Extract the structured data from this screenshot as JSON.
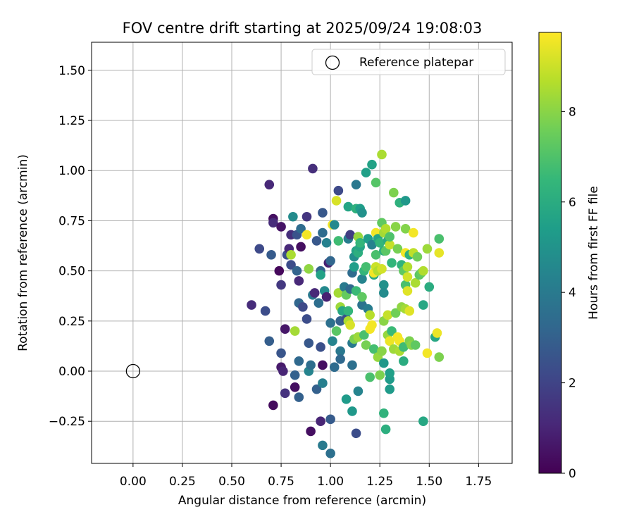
{
  "chart_data": {
    "type": "scatter",
    "title": "FOV centre drift starting at 2025/09/24 19:08:03",
    "xlabel": "Angular distance from reference (arcmin)",
    "ylabel": "Rotation from reference (arcmin)",
    "xlim": [
      -0.21,
      1.92
    ],
    "ylim": [
      -0.46,
      1.64
    ],
    "xticks": [
      "0.00",
      "0.25",
      "0.50",
      "0.75",
      "1.00",
      "1.25",
      "1.50",
      "1.75"
    ],
    "yticks": [
      "−0.25",
      "0.00",
      "0.25",
      "0.50",
      "0.75",
      "1.00",
      "1.25",
      "1.50"
    ],
    "xtick_values": [
      0,
      0.25,
      0.5,
      0.75,
      1.0,
      1.25,
      1.5,
      1.75
    ],
    "ytick_values": [
      -0.25,
      0,
      0.25,
      0.5,
      0.75,
      1.0,
      1.25,
      1.5
    ],
    "grid": true,
    "legend": {
      "position": "top-right",
      "label": "Reference platepar"
    },
    "reference_point": {
      "x": 0.0,
      "y": 0.0
    },
    "colorbar": {
      "label": "Hours from first FF file",
      "range": [
        0,
        9.75
      ],
      "ticks": [
        "0",
        "2",
        "4",
        "6",
        "8"
      ],
      "tick_values": [
        0,
        2,
        4,
        6,
        8
      ],
      "colormap": "viridis"
    },
    "points": [
      {
        "x": 0.6,
        "y": 0.33,
        "h": 1.2
      },
      {
        "x": 0.64,
        "y": 0.61,
        "h": 2.2
      },
      {
        "x": 0.67,
        "y": 0.3,
        "h": 2.3
      },
      {
        "x": 0.69,
        "y": 0.93,
        "h": 1.1
      },
      {
        "x": 0.69,
        "y": 0.15,
        "h": 2.9
      },
      {
        "x": 0.7,
        "y": 0.58,
        "h": 2.8
      },
      {
        "x": 0.71,
        "y": 0.76,
        "h": 0.4
      },
      {
        "x": 0.71,
        "y": 0.74,
        "h": 1.2
      },
      {
        "x": 0.71,
        "y": -0.17,
        "h": 0.3
      },
      {
        "x": 0.74,
        "y": 0.5,
        "h": 0.2
      },
      {
        "x": 0.75,
        "y": 0.72,
        "h": 0.5
      },
      {
        "x": 0.75,
        "y": 0.43,
        "h": 1.6
      },
      {
        "x": 0.75,
        "y": 0.09,
        "h": 2.6
      },
      {
        "x": 0.75,
        "y": 0.02,
        "h": 0.7
      },
      {
        "x": 0.76,
        "y": 0.0,
        "h": 1.0
      },
      {
        "x": 0.77,
        "y": 0.21,
        "h": 0.6
      },
      {
        "x": 0.77,
        "y": -0.11,
        "h": 1.4
      },
      {
        "x": 0.78,
        "y": 0.58,
        "h": 2.4
      },
      {
        "x": 0.79,
        "y": 0.61,
        "h": 1.1
      },
      {
        "x": 0.8,
        "y": 0.68,
        "h": 1.3
      },
      {
        "x": 0.8,
        "y": 0.58,
        "h": 8.5
      },
      {
        "x": 0.8,
        "y": 0.53,
        "h": 2.3
      },
      {
        "x": 0.81,
        "y": 0.77,
        "h": 4.7
      },
      {
        "x": 0.82,
        "y": 0.2,
        "h": 8.4
      },
      {
        "x": 0.82,
        "y": -0.08,
        "h": 0.4
      },
      {
        "x": 0.82,
        "y": -0.02,
        "h": 3.0
      },
      {
        "x": 0.83,
        "y": 0.68,
        "h": 2.5
      },
      {
        "x": 0.83,
        "y": 0.5,
        "h": 3.1
      },
      {
        "x": 0.84,
        "y": 0.34,
        "h": 3.2
      },
      {
        "x": 0.84,
        "y": 0.45,
        "h": 1.1
      },
      {
        "x": 0.84,
        "y": 0.05,
        "h": 3.3
      },
      {
        "x": 0.84,
        "y": -0.13,
        "h": 3.0
      },
      {
        "x": 0.85,
        "y": 0.71,
        "h": 3.4
      },
      {
        "x": 0.85,
        "y": 0.62,
        "h": 0.4
      },
      {
        "x": 0.86,
        "y": 0.32,
        "h": 2.2
      },
      {
        "x": 0.88,
        "y": 0.77,
        "h": 1.5
      },
      {
        "x": 0.88,
        "y": 0.68,
        "h": 9.6
      },
      {
        "x": 0.88,
        "y": 0.26,
        "h": 2.3
      },
      {
        "x": 0.89,
        "y": 0.14,
        "h": 2.7
      },
      {
        "x": 0.89,
        "y": 0.0,
        "h": 4.4
      },
      {
        "x": 0.89,
        "y": 0.51,
        "h": 8.1
      },
      {
        "x": 0.9,
        "y": -0.3,
        "h": 0.4
      },
      {
        "x": 0.9,
        "y": 0.03,
        "h": 3.5
      },
      {
        "x": 0.91,
        "y": 1.01,
        "h": 1.3
      },
      {
        "x": 0.91,
        "y": 0.38,
        "h": 3.9
      },
      {
        "x": 0.92,
        "y": 0.39,
        "h": 1.1
      },
      {
        "x": 0.93,
        "y": -0.09,
        "h": 3.0
      },
      {
        "x": 0.93,
        "y": 0.65,
        "h": 2.7
      },
      {
        "x": 0.94,
        "y": 0.34,
        "h": 3.5
      },
      {
        "x": 0.95,
        "y": 0.5,
        "h": 3.1
      },
      {
        "x": 0.95,
        "y": 0.12,
        "h": 2.4
      },
      {
        "x": 0.95,
        "y": 0.48,
        "h": 5.6
      },
      {
        "x": 0.95,
        "y": -0.25,
        "h": 1.0
      },
      {
        "x": 0.96,
        "y": 0.79,
        "h": 2.7
      },
      {
        "x": 0.96,
        "y": 0.69,
        "h": 3.4
      },
      {
        "x": 0.96,
        "y": 0.03,
        "h": 0.4
      },
      {
        "x": 0.96,
        "y": -0.06,
        "h": 4.2
      },
      {
        "x": 0.96,
        "y": -0.37,
        "h": 4.0
      },
      {
        "x": 0.97,
        "y": 0.4,
        "h": 4.6
      },
      {
        "x": 0.98,
        "y": 0.37,
        "h": 0.9
      },
      {
        "x": 0.98,
        "y": 0.64,
        "h": 4.3
      },
      {
        "x": 0.99,
        "y": 0.54,
        "h": 0.9
      },
      {
        "x": 1.0,
        "y": 0.24,
        "h": 3.6
      },
      {
        "x": 1.0,
        "y": 0.55,
        "h": 3.2
      },
      {
        "x": 1.0,
        "y": -0.24,
        "h": 2.8
      },
      {
        "x": 1.0,
        "y": -0.41,
        "h": 3.6
      },
      {
        "x": 1.01,
        "y": 0.73,
        "h": 9.6
      },
      {
        "x": 1.01,
        "y": 0.15,
        "h": 4.4
      },
      {
        "x": 1.02,
        "y": 0.02,
        "h": 3.4
      },
      {
        "x": 1.02,
        "y": 0.73,
        "h": 4.6
      },
      {
        "x": 1.03,
        "y": 0.2,
        "h": 7.2
      },
      {
        "x": 1.03,
        "y": 0.85,
        "h": 9.2
      },
      {
        "x": 1.04,
        "y": 0.9,
        "h": 2.2
      },
      {
        "x": 1.04,
        "y": 0.39,
        "h": 8.4
      },
      {
        "x": 1.04,
        "y": 0.65,
        "h": 6.7
      },
      {
        "x": 1.05,
        "y": 0.32,
        "h": 8.3
      },
      {
        "x": 1.05,
        "y": 0.25,
        "h": 3.0
      },
      {
        "x": 1.05,
        "y": 0.1,
        "h": 3.9
      },
      {
        "x": 1.05,
        "y": 0.06,
        "h": 3.3
      },
      {
        "x": 1.06,
        "y": 0.3,
        "h": 5.8
      },
      {
        "x": 1.07,
        "y": 0.42,
        "h": 4.0
      },
      {
        "x": 1.08,
        "y": 0.38,
        "h": 7.4
      },
      {
        "x": 1.08,
        "y": 0.26,
        "h": 2.4
      },
      {
        "x": 1.08,
        "y": -0.14,
        "h": 5.3
      },
      {
        "x": 1.09,
        "y": 0.82,
        "h": 5.7
      },
      {
        "x": 1.09,
        "y": 0.66,
        "h": 4.1
      },
      {
        "x": 1.09,
        "y": 0.3,
        "h": 6.4
      },
      {
        "x": 1.09,
        "y": 0.25,
        "h": 8.5
      },
      {
        "x": 1.1,
        "y": 0.68,
        "h": 1.8
      },
      {
        "x": 1.1,
        "y": 0.41,
        "h": 3.3
      },
      {
        "x": 1.1,
        "y": 0.23,
        "h": 9.2
      },
      {
        "x": 1.11,
        "y": 0.49,
        "h": 3.4
      },
      {
        "x": 1.11,
        "y": 0.14,
        "h": 4.0
      },
      {
        "x": 1.11,
        "y": 0.03,
        "h": 3.6
      },
      {
        "x": 1.11,
        "y": -0.2,
        "h": 5.2
      },
      {
        "x": 1.12,
        "y": 0.57,
        "h": 4.8
      },
      {
        "x": 1.12,
        "y": 0.52,
        "h": 5.4
      },
      {
        "x": 1.12,
        "y": 0.16,
        "h": 7.8
      },
      {
        "x": 1.13,
        "y": 0.6,
        "h": 5.6
      },
      {
        "x": 1.13,
        "y": 0.81,
        "h": 6.2
      },
      {
        "x": 1.13,
        "y": -0.31,
        "h": 2.3
      },
      {
        "x": 1.13,
        "y": 0.93,
        "h": 3.9
      },
      {
        "x": 1.13,
        "y": 0.4,
        "h": 6.6
      },
      {
        "x": 1.14,
        "y": 0.67,
        "h": 8.2
      },
      {
        "x": 1.14,
        "y": 0.59,
        "h": 6.1
      },
      {
        "x": 1.14,
        "y": 0.17,
        "h": 8.3
      },
      {
        "x": 1.14,
        "y": -0.1,
        "h": 4.4
      },
      {
        "x": 1.15,
        "y": 0.81,
        "h": 5.4
      },
      {
        "x": 1.15,
        "y": 0.62,
        "h": 5.7
      },
      {
        "x": 1.15,
        "y": 0.64,
        "h": 6.4
      },
      {
        "x": 1.16,
        "y": 0.79,
        "h": 4.9
      },
      {
        "x": 1.16,
        "y": 0.33,
        "h": 3.7
      },
      {
        "x": 1.16,
        "y": 0.46,
        "h": 4.4
      },
      {
        "x": 1.16,
        "y": 0.37,
        "h": 7.3
      },
      {
        "x": 1.17,
        "y": 0.5,
        "h": 6.4
      },
      {
        "x": 1.17,
        "y": 0.18,
        "h": 6.9
      },
      {
        "x": 1.18,
        "y": 0.13,
        "h": 7.7
      },
      {
        "x": 1.18,
        "y": 0.99,
        "h": 5.5
      },
      {
        "x": 1.18,
        "y": 0.52,
        "h": 6.8
      },
      {
        "x": 1.19,
        "y": 0.66,
        "h": 5.4
      },
      {
        "x": 1.19,
        "y": 0.31,
        "h": 4.1
      },
      {
        "x": 1.2,
        "y": 0.21,
        "h": 9.6
      },
      {
        "x": 1.2,
        "y": -0.03,
        "h": 6.9
      },
      {
        "x": 1.2,
        "y": 0.28,
        "h": 8.7
      },
      {
        "x": 1.21,
        "y": 1.03,
        "h": 5.6
      },
      {
        "x": 1.21,
        "y": 0.63,
        "h": 4.3
      },
      {
        "x": 1.21,
        "y": 0.23,
        "h": 9.6
      },
      {
        "x": 1.22,
        "y": 0.48,
        "h": 5.8
      },
      {
        "x": 1.22,
        "y": 0.11,
        "h": 6.8
      },
      {
        "x": 1.22,
        "y": 0.49,
        "h": 9.6
      },
      {
        "x": 1.23,
        "y": 0.94,
        "h": 7.1
      },
      {
        "x": 1.23,
        "y": 0.69,
        "h": 9.6
      },
      {
        "x": 1.23,
        "y": 0.52,
        "h": 9.0
      },
      {
        "x": 1.23,
        "y": 0.58,
        "h": 6.9
      },
      {
        "x": 1.24,
        "y": 0.07,
        "h": 8.2
      },
      {
        "x": 1.24,
        "y": 0.66,
        "h": 5.7
      },
      {
        "x": 1.24,
        "y": 0.5,
        "h": 8.6
      },
      {
        "x": 1.25,
        "y": -0.02,
        "h": 7.8
      },
      {
        "x": 1.25,
        "y": 0.64,
        "h": 6.4
      },
      {
        "x": 1.26,
        "y": 0.74,
        "h": 7.3
      },
      {
        "x": 1.26,
        "y": 0.1,
        "h": 8.0
      },
      {
        "x": 1.26,
        "y": 0.51,
        "h": 9.1
      },
      {
        "x": 1.26,
        "y": 1.08,
        "h": 8.5
      },
      {
        "x": 1.27,
        "y": 0.69,
        "h": 8.4
      },
      {
        "x": 1.27,
        "y": 0.6,
        "h": 6.1
      },
      {
        "x": 1.27,
        "y": 0.43,
        "h": 4.9
      },
      {
        "x": 1.27,
        "y": 0.39,
        "h": 4.7
      },
      {
        "x": 1.27,
        "y": 0.25,
        "h": 8.0
      },
      {
        "x": 1.27,
        "y": 0.04,
        "h": 5.2
      },
      {
        "x": 1.27,
        "y": -0.21,
        "h": 6.3
      },
      {
        "x": 1.28,
        "y": 0.71,
        "h": 8.6
      },
      {
        "x": 1.28,
        "y": 0.6,
        "h": 7.2
      },
      {
        "x": 1.28,
        "y": -0.29,
        "h": 6.1
      },
      {
        "x": 1.29,
        "y": 0.65,
        "h": 6.0
      },
      {
        "x": 1.29,
        "y": 0.18,
        "h": 8.2
      },
      {
        "x": 1.29,
        "y": 0.28,
        "h": 8.9
      },
      {
        "x": 1.3,
        "y": 0.63,
        "h": 8.9
      },
      {
        "x": 1.3,
        "y": 0.67,
        "h": 7.0
      },
      {
        "x": 1.3,
        "y": 0.15,
        "h": 9.5
      },
      {
        "x": 1.3,
        "y": -0.04,
        "h": 5.3
      },
      {
        "x": 1.3,
        "y": -0.09,
        "h": 5.3
      },
      {
        "x": 1.3,
        "y": -0.01,
        "h": 5.5
      },
      {
        "x": 1.31,
        "y": 0.54,
        "h": 6.4
      },
      {
        "x": 1.31,
        "y": 0.2,
        "h": 6.6
      },
      {
        "x": 1.32,
        "y": 0.89,
        "h": 7.8
      },
      {
        "x": 1.32,
        "y": 0.11,
        "h": 8.3
      },
      {
        "x": 1.33,
        "y": 0.72,
        "h": 8.0
      },
      {
        "x": 1.33,
        "y": 0.29,
        "h": 7.6
      },
      {
        "x": 1.34,
        "y": 0.17,
        "h": 9.6
      },
      {
        "x": 1.34,
        "y": 0.61,
        "h": 7.7
      },
      {
        "x": 1.35,
        "y": 0.84,
        "h": 6.2
      },
      {
        "x": 1.35,
        "y": 0.1,
        "h": 8.5
      },
      {
        "x": 1.35,
        "y": 0.15,
        "h": 9.6
      },
      {
        "x": 1.36,
        "y": 0.53,
        "h": 6.3
      },
      {
        "x": 1.36,
        "y": 0.32,
        "h": 8.1
      },
      {
        "x": 1.37,
        "y": 0.12,
        "h": 6.7
      },
      {
        "x": 1.37,
        "y": 0.5,
        "h": 7.3
      },
      {
        "x": 1.37,
        "y": 0.05,
        "h": 6.0
      },
      {
        "x": 1.38,
        "y": 0.85,
        "h": 5.2
      },
      {
        "x": 1.38,
        "y": 0.71,
        "h": 7.9
      },
      {
        "x": 1.38,
        "y": 0.59,
        "h": 9.6
      },
      {
        "x": 1.38,
        "y": 0.43,
        "h": 6.9
      },
      {
        "x": 1.38,
        "y": 0.31,
        "h": 8.4
      },
      {
        "x": 1.39,
        "y": 0.4,
        "h": 9.3
      },
      {
        "x": 1.39,
        "y": 0.52,
        "h": 8.6
      },
      {
        "x": 1.39,
        "y": 0.47,
        "h": 9.1
      },
      {
        "x": 1.4,
        "y": 0.15,
        "h": 7.1
      },
      {
        "x": 1.4,
        "y": 0.58,
        "h": 6.2
      },
      {
        "x": 1.4,
        "y": 0.3,
        "h": 9.3
      },
      {
        "x": 1.4,
        "y": 0.15,
        "h": 7.8
      },
      {
        "x": 1.41,
        "y": 0.13,
        "h": 8.0
      },
      {
        "x": 1.42,
        "y": 0.59,
        "h": 8.8
      },
      {
        "x": 1.42,
        "y": 0.69,
        "h": 9.6
      },
      {
        "x": 1.43,
        "y": 0.44,
        "h": 8.5
      },
      {
        "x": 1.43,
        "y": 0.13,
        "h": 7.3
      },
      {
        "x": 1.44,
        "y": 0.57,
        "h": 7.6
      },
      {
        "x": 1.45,
        "y": 0.48,
        "h": 7.2
      },
      {
        "x": 1.46,
        "y": 0.49,
        "h": 7.4
      },
      {
        "x": 1.47,
        "y": 0.5,
        "h": 8.6
      },
      {
        "x": 1.47,
        "y": 0.33,
        "h": 5.8
      },
      {
        "x": 1.47,
        "y": -0.25,
        "h": 5.8
      },
      {
        "x": 1.49,
        "y": 0.61,
        "h": 8.3
      },
      {
        "x": 1.49,
        "y": 0.09,
        "h": 9.6
      },
      {
        "x": 1.5,
        "y": 0.42,
        "h": 6.0
      },
      {
        "x": 1.53,
        "y": 0.17,
        "h": 5.8
      },
      {
        "x": 1.54,
        "y": 0.19,
        "h": 9.5
      },
      {
        "x": 1.55,
        "y": 0.66,
        "h": 6.9
      },
      {
        "x": 1.55,
        "y": 0.59,
        "h": 9.4
      },
      {
        "x": 1.55,
        "y": 0.07,
        "h": 7.8
      }
    ]
  }
}
